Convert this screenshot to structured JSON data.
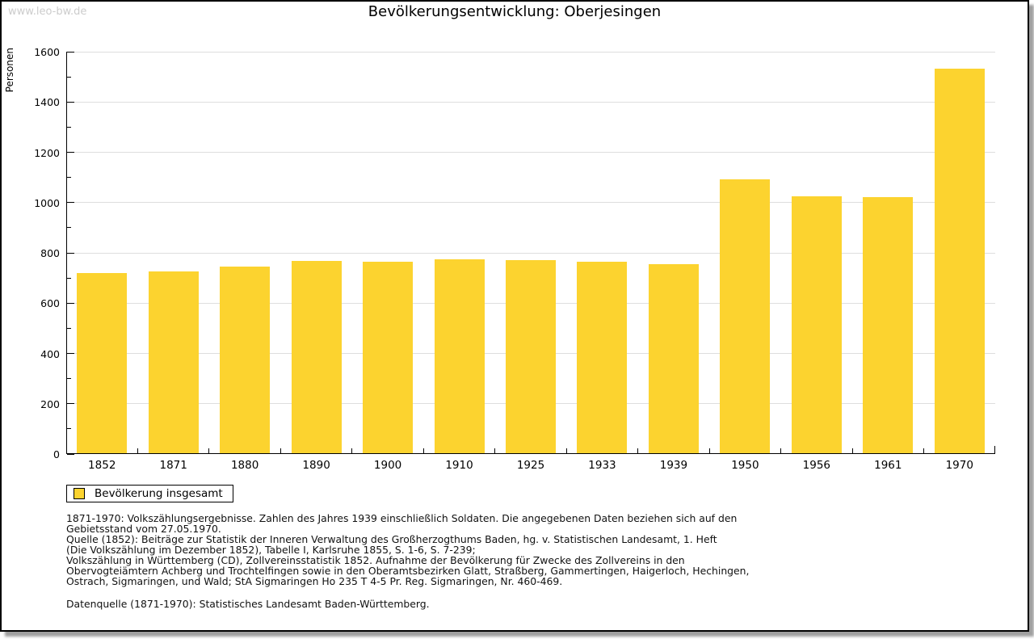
{
  "window": {
    "watermark": "www.leo-bw.de"
  },
  "chart_data": {
    "type": "bar",
    "title": "Bevölkerungsentwicklung: Oberjesingen",
    "ylabel": "Personen",
    "xlabel": "",
    "categories": [
      "1852",
      "1871",
      "1880",
      "1890",
      "1900",
      "1910",
      "1925",
      "1933",
      "1939",
      "1950",
      "1956",
      "1961",
      "1970"
    ],
    "values": [
      716,
      722,
      742,
      766,
      762,
      772,
      769,
      760,
      752,
      1090,
      1021,
      1017,
      1530
    ],
    "ylim": [
      0,
      1600
    ],
    "ytick_step": 200,
    "yminor_step": 100,
    "grid": true,
    "legend_position": "bottom-left",
    "legend_label": "Bevölkerung insgesamt",
    "bar_color": "#fcd32f"
  },
  "colors": {
    "bar": "#fcd32f",
    "grid": "#dedede",
    "axis": "#000000",
    "watermark": "#cccccc"
  },
  "footnotes": {
    "lines": [
      "1871-1970: Volkszählungsergebnisse. Zahlen des Jahres 1939 einschließlich Soldaten. Die angegebenen Daten beziehen sich auf den",
      "Gebietsstand vom 27.05.1970.",
      "Quelle (1852): Beiträge zur Statistik der Inneren Verwaltung des Großherzogthums Baden, hg. v. Statistischen Landesamt, 1. Heft",
      "(Die Volkszählung im Dezember 1852), Tabelle I, Karlsruhe 1855, S. 1-6, S. 7-239;",
      "Volkszählung in Württemberg (CD), Zollvereinsstatistik 1852. Aufnahme der Bevölkerung für Zwecke des Zollvereins in den",
      "Obervogteiämtern Achberg und Trochtelfingen sowie in den Oberamtsbezirken Glatt, Straßberg, Gammertingen, Haigerloch, Hechingen,",
      "Ostrach, Sigmaringen, und Wald; StA Sigmaringen Ho 235 T 4-5 Pr. Reg. Sigmaringen, Nr. 460-469."
    ],
    "datasource": "Datenquelle (1871-1970): Statistisches Landesamt Baden-Württemberg."
  }
}
